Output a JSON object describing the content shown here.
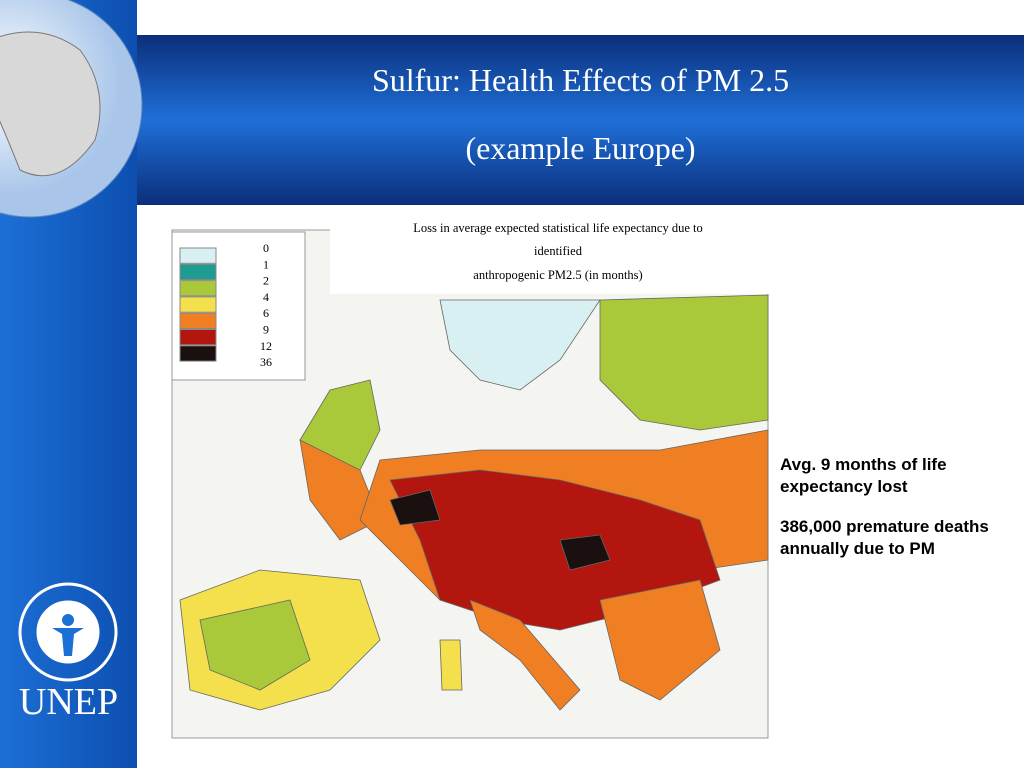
{
  "header": {
    "title_lines": [
      "Sulfur: Health Effects of PM 2.5",
      "(example Europe)"
    ]
  },
  "map": {
    "caption_lines": [
      "Loss in average expected statistical life expectancy due to",
      "identified",
      "anthropogenic PM2.5 (in months)"
    ],
    "legend_labels": [
      "0",
      "1",
      "2",
      "4",
      "6",
      "9",
      "12",
      "36"
    ],
    "legend_colors": [
      "#d9f0f2",
      "#1f9c92",
      "#a9c93a",
      "#f3e04c",
      "#ef7f22",
      "#b3160e",
      "#1a1010"
    ]
  },
  "notes": [
    "Avg. 9 months of life expectancy lost",
    "386,000 premature deaths annually due to PM"
  ],
  "logo": {
    "text": "UNEP"
  }
}
